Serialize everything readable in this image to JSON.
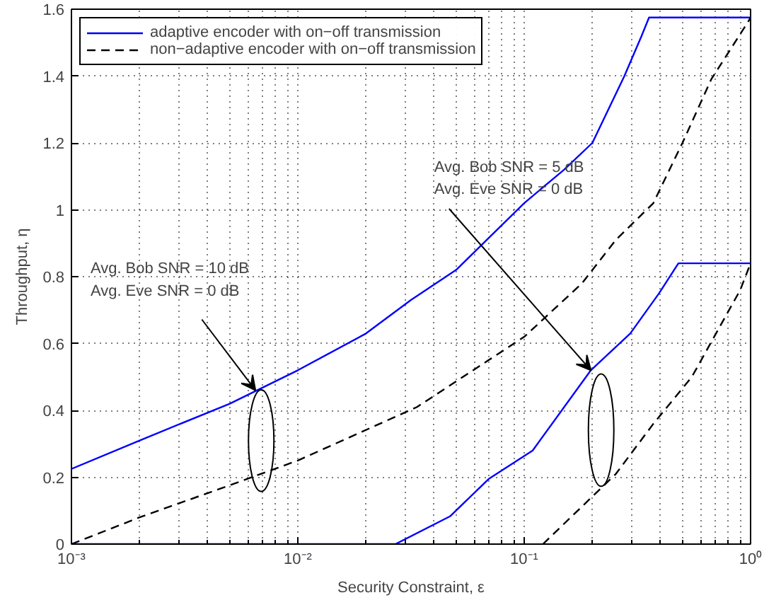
{
  "chart_data": {
    "type": "line",
    "xlabel": "Security Constraint, ε",
    "ylabel": "Throughput, η",
    "log": "x",
    "xlim": [
      0.001,
      1
    ],
    "ylim": [
      0,
      1.6
    ],
    "xticks": [
      {
        "value": 0.001,
        "label": "10⁻³"
      },
      {
        "value": 0.01,
        "label": "10⁻²"
      },
      {
        "value": 0.1,
        "label": "10⁻¹"
      },
      {
        "value": 1,
        "label": "10⁰"
      }
    ],
    "yticks": [
      0,
      0.2,
      0.4,
      0.6,
      0.8,
      1,
      1.2,
      1.4,
      1.6
    ],
    "grid": true,
    "legend": "top left",
    "series": [
      {
        "name": "adaptive encoder with on−off transmission",
        "color": "#0000ff",
        "line_style": "solid",
        "x": [
          0.001,
          0.002,
          0.005,
          0.01,
          0.02,
          0.0316,
          0.05,
          0.1,
          0.15,
          0.2,
          0.277,
          0.33,
          0.356,
          1
        ],
        "values": [
          0.225,
          0.31,
          0.42,
          0.52,
          0.63,
          0.73,
          0.82,
          1.02,
          1.12,
          1.2,
          1.4,
          1.52,
          1.575,
          1.575
        ]
      },
      {
        "name": "non−adaptive encoder with on−off transmission",
        "color": "#000000",
        "line_style": "dashed",
        "x": [
          0.001,
          0.002,
          0.005,
          0.01,
          0.0336,
          0.1,
          0.18,
          0.254,
          0.372,
          0.5,
          0.67,
          0.97,
          1
        ],
        "values": [
          0,
          0.08,
          0.176,
          0.25,
          0.41,
          0.62,
          0.78,
          0.91,
          1.02,
          1.2,
          1.39,
          1.56,
          1.575
        ]
      },
      {
        "color": "#0000ff",
        "line_style": "solid",
        "x": [
          0.001,
          0.027,
          0.047,
          0.07,
          0.109,
          0.197,
          0.294,
          0.394,
          0.48,
          1
        ],
        "values": [
          0,
          0,
          0.083,
          0.196,
          0.28,
          0.52,
          0.63,
          0.75,
          0.84,
          0.84
        ]
      },
      {
        "color": "#000000",
        "line_style": "dashed",
        "x": [
          0.121,
          0.254,
          0.372,
          0.55,
          0.9,
          1
        ],
        "values": [
          0,
          0.21,
          0.36,
          0.5,
          0.76,
          0.84
        ]
      }
    ],
    "annotations": [
      {
        "text": "Avg. Bob SNR = 10 dB\nAvg. Eve SNR = 0 dB",
        "x": 0.0065,
        "y": 0.46
      },
      {
        "text": "Avg. Bob SNR = 5 dB\nAvg. Eve SNR = 0 dB",
        "x": 0.197,
        "y": 0.52
      }
    ]
  }
}
